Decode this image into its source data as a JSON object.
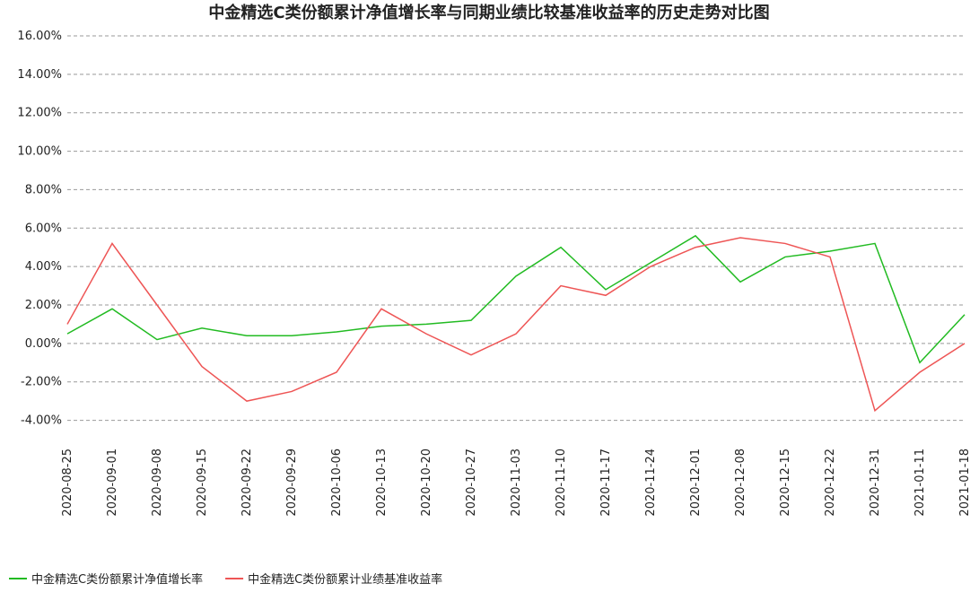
{
  "chart_data": {
    "type": "line",
    "title": "中金精选C类份额累计净值增长率与同期业绩比较基准收益率的历史走势对比图",
    "categories": [
      "2020-08-25",
      "2020-09-01",
      "2020-09-08",
      "2020-09-15",
      "2020-09-22",
      "2020-09-29",
      "2020-10-06",
      "2020-10-13",
      "2020-10-20",
      "2020-10-27",
      "2020-11-03",
      "2020-11-10",
      "2020-11-17",
      "2020-11-24",
      "2020-12-01",
      "2020-12-08",
      "2020-12-15",
      "2020-12-22",
      "2020-12-31",
      "2021-01-11",
      "2021-01-18"
    ],
    "series": [
      {
        "name": "中金精选C类份额累计净值增长率",
        "color": "#22bb22",
        "values": [
          0.5,
          1.8,
          0.2,
          0.8,
          0.4,
          0.4,
          0.6,
          0.9,
          1.0,
          1.2,
          3.5,
          5.0,
          2.8,
          4.2,
          5.6,
          3.2,
          4.5,
          4.8,
          5.2,
          -1.0,
          1.5
        ]
      },
      {
        "name": "中金精选C类份额累计业绩基准收益率",
        "color": "#ee5555",
        "values": [
          1.0,
          5.2,
          2.0,
          -1.2,
          -3.0,
          -2.5,
          -1.5,
          1.8,
          0.5,
          -0.6,
          0.5,
          3.0,
          2.5,
          4.0,
          5.0,
          5.5,
          5.2,
          4.5,
          -3.5,
          -1.5,
          0.0
        ]
      }
    ],
    "ylim": [
      -5,
      16
    ],
    "yticks": [
      {
        "value": -4,
        "label": "-4.00%"
      },
      {
        "value": -2,
        "label": "-2.00%"
      },
      {
        "value": 0,
        "label": "0.00%"
      },
      {
        "value": 2,
        "label": "2.00%"
      },
      {
        "value": 4,
        "label": "4.00%"
      },
      {
        "value": 6,
        "label": "6.00%"
      },
      {
        "value": 8,
        "label": "8.00%"
      },
      {
        "value": 10,
        "label": "10.00%"
      },
      {
        "value": 12,
        "label": "12.00%"
      },
      {
        "value": 14,
        "label": "14.00%"
      },
      {
        "value": 16,
        "label": "16.00%"
      }
    ],
    "grid": true
  }
}
